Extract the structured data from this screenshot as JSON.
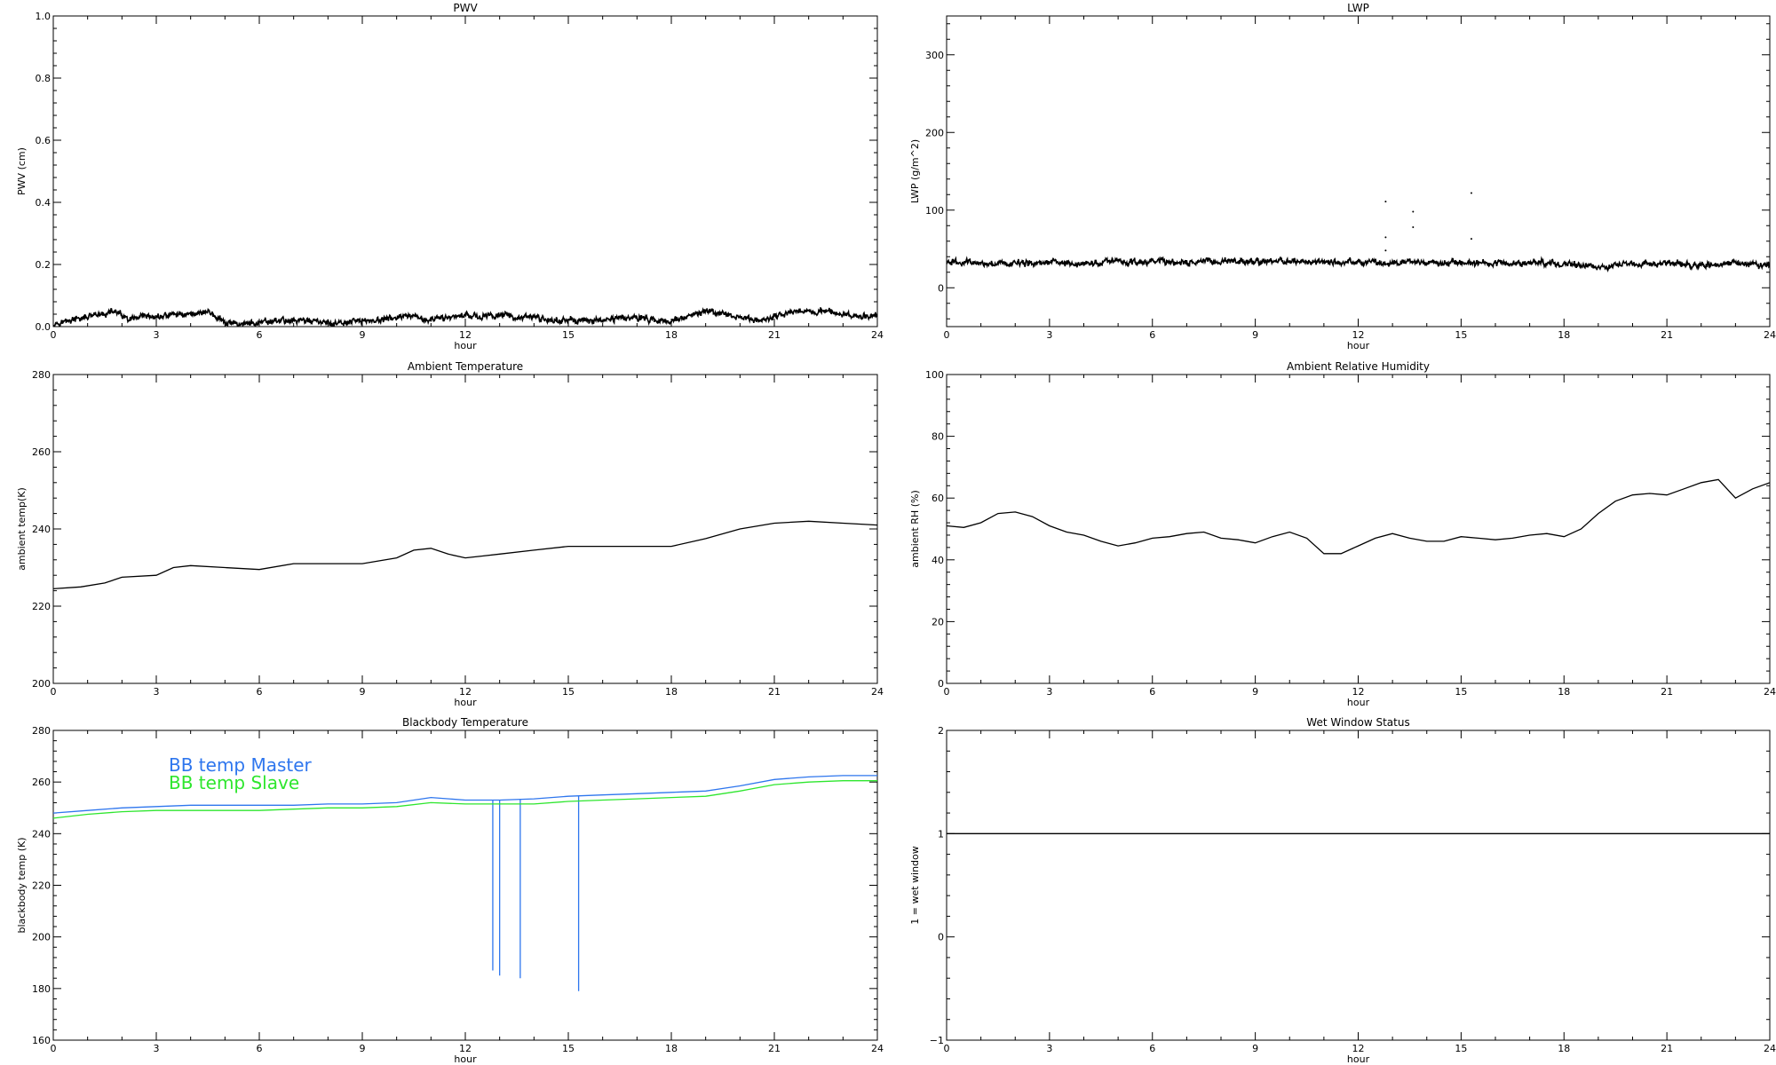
{
  "chart_data": [
    {
      "type": "line",
      "title": "PWV",
      "xlabel": "hour",
      "ylabel": "PWV (cm)",
      "xlim": [
        0,
        24
      ],
      "ylim": [
        0.0,
        1.0
      ],
      "xticks": [
        0,
        3,
        6,
        9,
        12,
        15,
        18,
        21,
        24
      ],
      "xtick_labels": [
        "0",
        "3",
        "6",
        "9",
        "12",
        "15",
        "18",
        "21",
        "24"
      ],
      "yticks": [
        0.0,
        0.2,
        0.4,
        0.6,
        0.8,
        1.0
      ],
      "ytick_labels": [
        "0.0",
        "0.2",
        "0.4",
        "0.6",
        "0.8",
        "1.0"
      ],
      "grid": false,
      "series": [
        {
          "color": "#000000",
          "noisy": true,
          "x": [
            0,
            0.5,
            1,
            1.5,
            1.8,
            2.2,
            2.6,
            3,
            3.5,
            4,
            4.5,
            5,
            5.5,
            6,
            6.5,
            7,
            7.5,
            8,
            8.5,
            9,
            9.5,
            10,
            10.5,
            11,
            11.5,
            12,
            12.5,
            13,
            13.5,
            14,
            14.5,
            15,
            15.5,
            16,
            16.5,
            17,
            17.5,
            18,
            18.5,
            19,
            19.5,
            20,
            20.5,
            21,
            21.5,
            22,
            22.5,
            23,
            23.5,
            24
          ],
          "y": [
            0.01,
            0.02,
            0.03,
            0.04,
            0.05,
            0.02,
            0.03,
            0.03,
            0.04,
            0.04,
            0.05,
            0.01,
            0.01,
            0.01,
            0.02,
            0.02,
            0.02,
            0.01,
            0.01,
            0.02,
            0.02,
            0.03,
            0.03,
            0.02,
            0.03,
            0.04,
            0.03,
            0.04,
            0.03,
            0.03,
            0.02,
            0.02,
            0.02,
            0.02,
            0.03,
            0.03,
            0.02,
            0.02,
            0.03,
            0.05,
            0.04,
            0.03,
            0.02,
            0.03,
            0.05,
            0.05,
            0.05,
            0.04,
            0.03,
            0.04
          ]
        }
      ]
    },
    {
      "type": "line",
      "title": "LWP",
      "xlabel": "hour",
      "ylabel": "LWP (g/m^2)",
      "xlim": [
        0,
        24
      ],
      "ylim": [
        -50,
        350
      ],
      "xticks": [
        0,
        3,
        6,
        9,
        12,
        15,
        18,
        21,
        24
      ],
      "xtick_labels": [
        "0",
        "3",
        "6",
        "9",
        "12",
        "15",
        "18",
        "21",
        "24"
      ],
      "yticks": [
        0,
        100,
        200,
        300
      ],
      "ytick_labels": [
        "0",
        "100",
        "200",
        "300"
      ],
      "grid": false,
      "series": [
        {
          "color": "#000000",
          "noisy": true,
          "x": [
            0,
            1,
            2,
            3,
            4,
            5,
            6,
            7,
            8,
            9,
            10,
            11,
            12,
            13,
            14,
            15,
            16,
            17,
            18,
            19,
            20,
            21,
            22,
            23,
            24
          ],
          "y": [
            33,
            32,
            31,
            33,
            31,
            34,
            33,
            32,
            34,
            33,
            35,
            33,
            33,
            32,
            33,
            32,
            32,
            32,
            31,
            27,
            30,
            31,
            30,
            31,
            29
          ]
        }
      ],
      "scatter": {
        "x": [
          12.8,
          12.8,
          12.8,
          13.6,
          13.6,
          15.3,
          15.3
        ],
        "y": [
          111,
          65,
          48,
          98,
          78,
          122,
          63
        ]
      }
    },
    {
      "type": "line",
      "title": "Ambient Temperature",
      "xlabel": "hour",
      "ylabel": "ambient temp(K)",
      "xlim": [
        0,
        24
      ],
      "ylim": [
        200,
        280
      ],
      "xticks": [
        0,
        3,
        6,
        9,
        12,
        15,
        18,
        21,
        24
      ],
      "xtick_labels": [
        "0",
        "3",
        "6",
        "9",
        "12",
        "15",
        "18",
        "21",
        "24"
      ],
      "yticks": [
        200,
        220,
        240,
        260,
        280
      ],
      "ytick_labels": [
        "200",
        "220",
        "240",
        "260",
        "280"
      ],
      "grid": false,
      "series": [
        {
          "color": "#000000",
          "x": [
            0,
            0.8,
            1.5,
            2,
            3,
            3.5,
            4,
            5,
            6,
            7,
            8,
            9,
            10,
            10.5,
            11,
            11.5,
            12,
            12.5,
            13,
            14,
            15,
            16,
            17,
            17.5,
            18,
            19,
            20,
            21,
            22,
            23,
            24
          ],
          "y": [
            224.5,
            225,
            226,
            227.5,
            228,
            230,
            230.5,
            230,
            229.5,
            231,
            231,
            231,
            232.5,
            234.5,
            235,
            233.5,
            232.5,
            233,
            233.5,
            234.5,
            235.5,
            235.5,
            235.5,
            235.5,
            235.5,
            237.5,
            240,
            241.5,
            242,
            241.5,
            241
          ]
        }
      ]
    },
    {
      "type": "line",
      "title": "Ambient Relative Humidity",
      "xlabel": "hour",
      "ylabel": "ambient RH (%)",
      "xlim": [
        0,
        24
      ],
      "ylim": [
        0,
        100
      ],
      "xticks": [
        0,
        3,
        6,
        9,
        12,
        15,
        18,
        21,
        24
      ],
      "xtick_labels": [
        "0",
        "3",
        "6",
        "9",
        "12",
        "15",
        "18",
        "21",
        "24"
      ],
      "yticks": [
        0,
        20,
        40,
        60,
        80,
        100
      ],
      "ytick_labels": [
        "0",
        "20",
        "40",
        "60",
        "80",
        "100"
      ],
      "grid": false,
      "series": [
        {
          "color": "#000000",
          "x": [
            0,
            0.5,
            1,
            1.5,
            2,
            2.5,
            3,
            3.5,
            4,
            4.5,
            5,
            5.5,
            6,
            6.5,
            7,
            7.5,
            8,
            8.5,
            9,
            9.5,
            10,
            10.5,
            11,
            11.5,
            12,
            12.5,
            13,
            13.5,
            14,
            14.5,
            15,
            15.5,
            16,
            16.5,
            17,
            17.5,
            18,
            18.5,
            19,
            19.5,
            20,
            20.5,
            21,
            21.5,
            22,
            22.5,
            23,
            23.5,
            24
          ],
          "y": [
            51,
            50.5,
            52,
            55,
            55.5,
            54,
            51,
            49,
            48,
            46,
            44.5,
            45.5,
            47,
            47.5,
            48.5,
            49,
            47,
            46.5,
            45.5,
            47.5,
            49,
            47,
            42,
            42,
            44.5,
            47,
            48.5,
            47,
            46,
            46,
            47.5,
            47,
            46.5,
            47,
            48,
            48.5,
            47.5,
            50,
            55,
            59,
            61,
            61.5,
            61,
            63,
            65,
            66,
            60,
            63,
            65
          ]
        }
      ]
    },
    {
      "type": "line",
      "title": "Blackbody Temperature",
      "xlabel": "hour",
      "ylabel": "blackbody temp (K)",
      "xlim": [
        0,
        24
      ],
      "ylim": [
        160,
        280
      ],
      "xticks": [
        0,
        3,
        6,
        9,
        12,
        15,
        18,
        21,
        24
      ],
      "xtick_labels": [
        "0",
        "3",
        "6",
        "9",
        "12",
        "15",
        "18",
        "21",
        "24"
      ],
      "yticks": [
        160,
        180,
        200,
        220,
        240,
        260,
        280
      ],
      "ytick_labels": [
        "160",
        "180",
        "200",
        "220",
        "240",
        "260",
        "280"
      ],
      "grid": false,
      "legend": {
        "placement": "top-left",
        "entries": [
          "BB temp Master",
          "BB temp Slave"
        ]
      },
      "series": [
        {
          "name": "BB temp Master",
          "color": "#2e76ee",
          "x": [
            0,
            1,
            2,
            3,
            4,
            5,
            6,
            7,
            8,
            9,
            10,
            11,
            12,
            13,
            14,
            15,
            16,
            17,
            18,
            19,
            20,
            21,
            22,
            23,
            24
          ],
          "y": [
            248,
            249,
            250,
            250.5,
            251,
            251,
            251,
            251,
            251.5,
            251.5,
            252,
            254,
            253,
            253,
            253.5,
            254.5,
            255,
            255.5,
            256,
            256.5,
            258.5,
            261,
            262,
            262.5,
            262.5
          ],
          "spikes": [
            {
              "x": 12.8,
              "y": 187
            },
            {
              "x": 13.0,
              "y": 185
            },
            {
              "x": 13.6,
              "y": 184
            },
            {
              "x": 15.3,
              "y": 179
            }
          ]
        },
        {
          "name": "BB temp Slave",
          "color": "#2ee62e",
          "x": [
            0,
            1,
            2,
            3,
            4,
            5,
            6,
            7,
            8,
            9,
            10,
            11,
            12,
            13,
            14,
            15,
            16,
            17,
            18,
            19,
            20,
            21,
            22,
            23,
            24
          ],
          "y": [
            246,
            247.5,
            248.5,
            249,
            249,
            249,
            249,
            249.5,
            250,
            250,
            250.5,
            252,
            251.5,
            251.5,
            251.5,
            252.5,
            253,
            253.5,
            254,
            254.5,
            256.5,
            259,
            260,
            260.5,
            260.5
          ]
        }
      ]
    },
    {
      "type": "line",
      "title": "Wet Window Status",
      "xlabel": "hour",
      "ylabel": "1 = wet window",
      "xlim": [
        0,
        24
      ],
      "ylim": [
        -1,
        2
      ],
      "xticks": [
        0,
        3,
        6,
        9,
        12,
        15,
        18,
        21,
        24
      ],
      "xtick_labels": [
        "0",
        "3",
        "6",
        "9",
        "12",
        "15",
        "18",
        "21",
        "24"
      ],
      "yticks": [
        -1,
        0,
        1,
        2
      ],
      "ytick_labels": [
        "-1",
        "0",
        "1",
        "2"
      ],
      "grid": false,
      "series": [
        {
          "color": "#000000",
          "x": [
            0,
            24
          ],
          "y": [
            1,
            1
          ]
        }
      ]
    }
  ]
}
